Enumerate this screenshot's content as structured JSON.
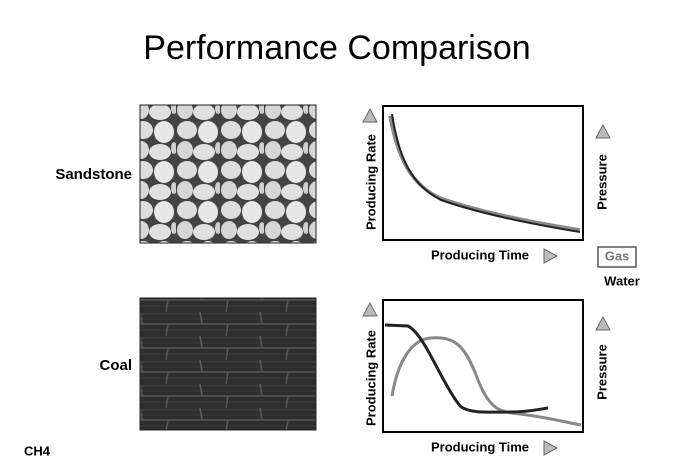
{
  "title": "Performance Comparison",
  "rows": [
    {
      "label": "Sandstone",
      "plot": {
        "y_label": "Producing Rate",
        "y2_label": "Pressure",
        "x_label": "Producing Time"
      }
    },
    {
      "label": "Coal",
      "plot": {
        "y_label": "Producing Rate",
        "y2_label": "Pressure",
        "x_label": "Producing Time"
      }
    }
  ],
  "legend": [
    "Gas",
    "Water"
  ],
  "footer": "CH4"
}
